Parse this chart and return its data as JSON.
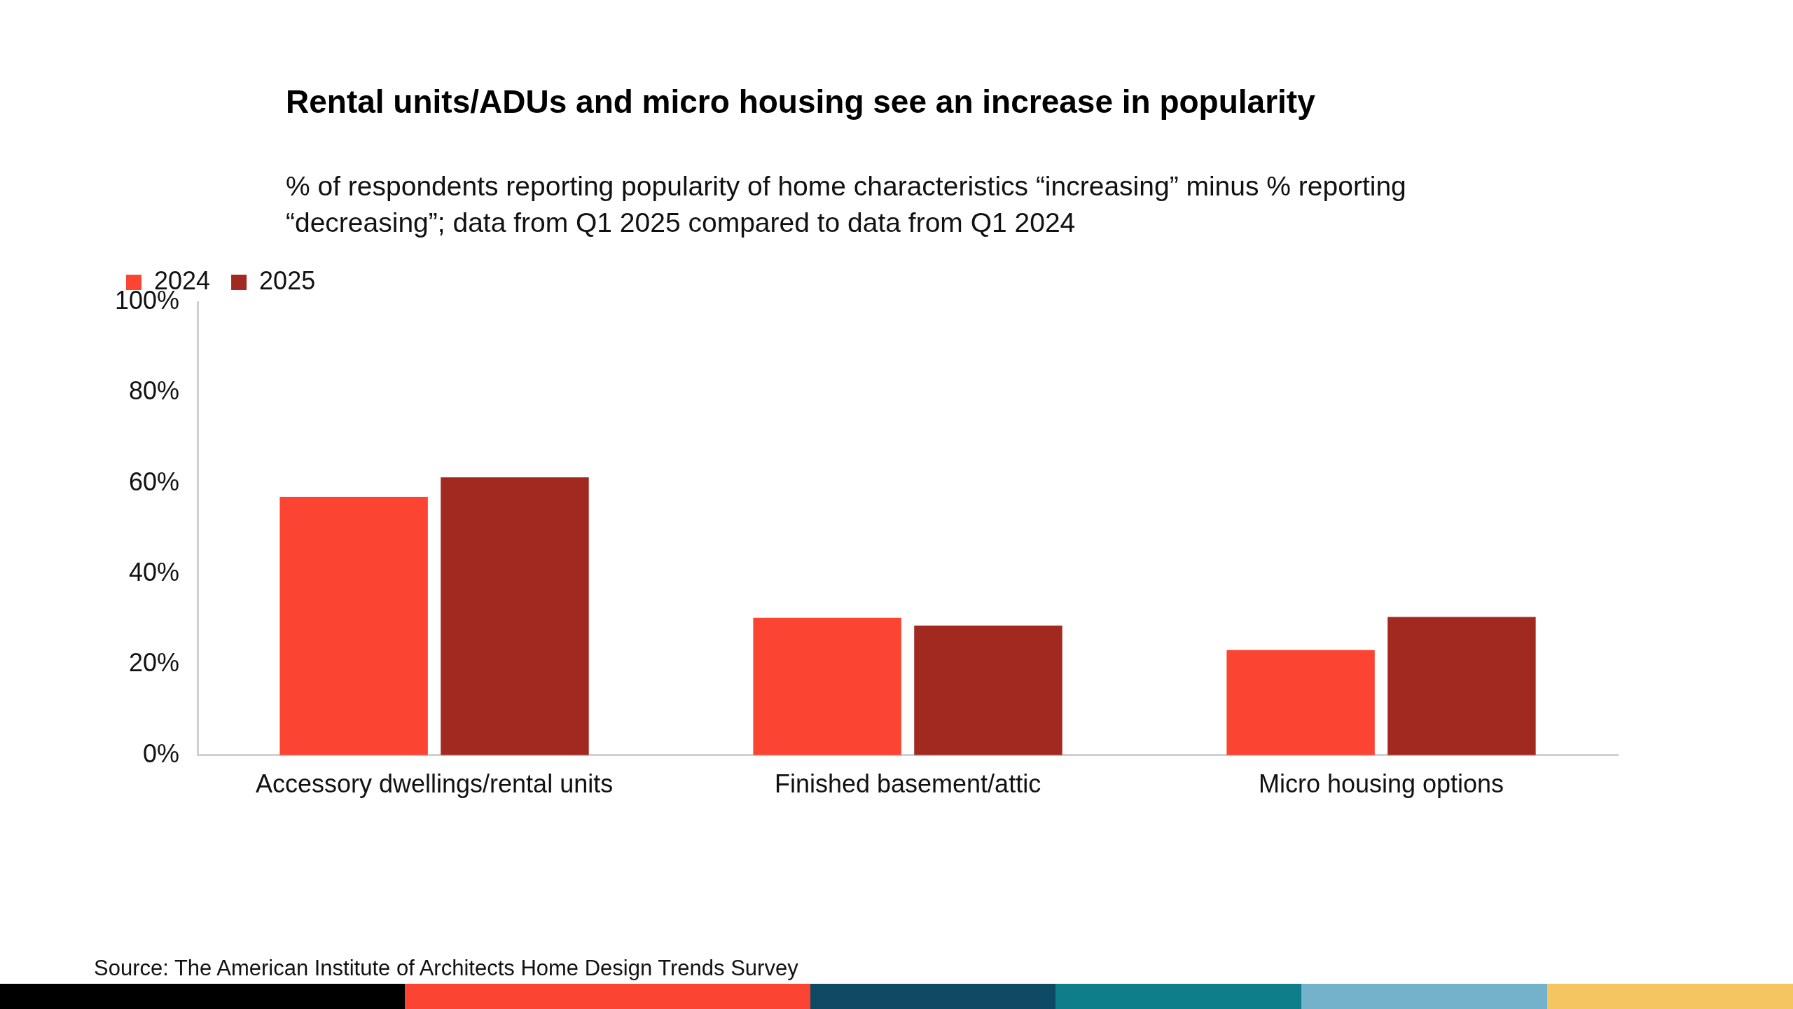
{
  "chart_data": {
    "type": "bar",
    "title": "Rental units/ADUs and micro housing see an increase in popularity",
    "subtitle": "% of respondents reporting popularity of home characteristics “increasing” minus % reporting “decreasing”; data from Q1 2025 compared to data from Q1 2024",
    "categories": [
      "Accessory dwellings/rental units",
      "Finished basement/attic",
      "Micro housing options"
    ],
    "series": [
      {
        "name": "2024",
        "color": "#fc4433",
        "values": [
          57,
          30.3,
          23.2
        ]
      },
      {
        "name": "2025",
        "color": "#a1291f",
        "values": [
          61.3,
          28.6,
          30.5
        ]
      }
    ],
    "ylim": [
      0,
      100
    ],
    "yticks": [
      {
        "value": 0,
        "label": "0%"
      },
      {
        "value": 20,
        "label": "20%"
      },
      {
        "value": 40,
        "label": "40%"
      },
      {
        "value": 60,
        "label": "60%"
      },
      {
        "value": 80,
        "label": "80%"
      },
      {
        "value": 100,
        "label": "100%"
      }
    ],
    "grid": false,
    "legend": "top left",
    "annotations": [
      "Source: The American Institute of Architects Home Design Trends Survey"
    ]
  }
}
